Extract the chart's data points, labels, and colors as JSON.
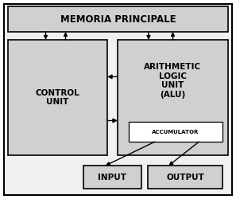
{
  "bg_color": "#f0f0f0",
  "box_fill": "#d0d0d0",
  "box_edge": "#000000",
  "white_fill": "#ffffff",
  "outer_bg": "#ffffff",
  "memoria_text": "MEMORIA PRINCIPALE",
  "control_text": "CONTROL\nUNIT",
  "alu_text": "ARITHMETIC\nLOGIC\nUNIT\n(ALU)",
  "accumulator_text": "ACCUMULATOR",
  "input_text": "INPUT",
  "output_text": "OUTPUT",
  "mp_fontsize": 8.5,
  "main_fontsize": 7.5,
  "acc_fontsize": 5.0
}
